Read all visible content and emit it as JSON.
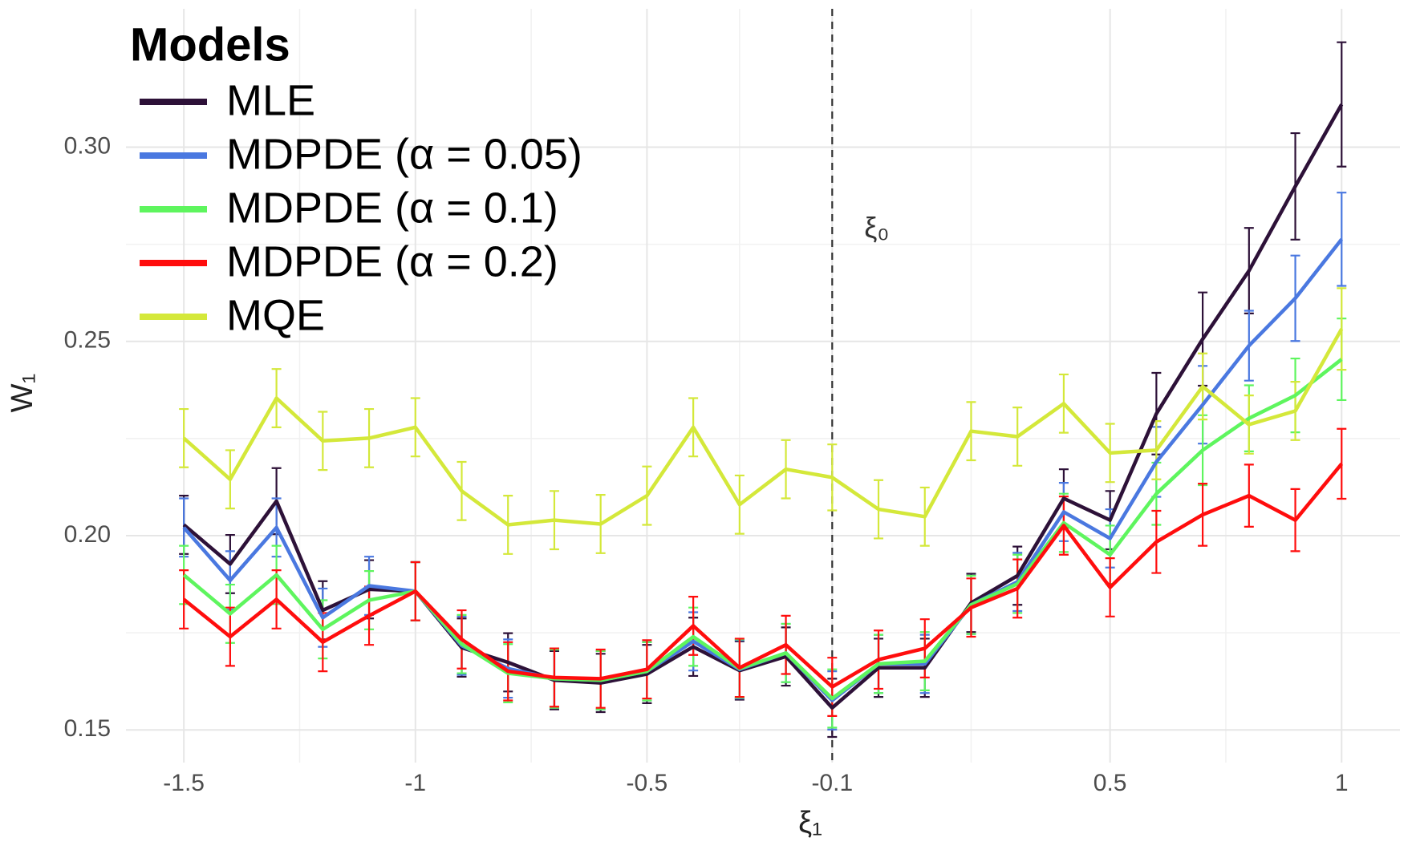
{
  "chart_data": {
    "type": "line",
    "x_label": "ξ₁",
    "y_label": "W₁",
    "legend_title": "Models",
    "legend_position": "top-left",
    "grid": true,
    "x": [
      -1.5,
      -1.4,
      -1.3,
      -1.2,
      -1.1,
      -1.0,
      -0.9,
      -0.8,
      -0.7,
      -0.6,
      -0.5,
      -0.4,
      -0.3,
      -0.2,
      -0.1,
      0.0,
      0.1,
      0.2,
      0.3,
      0.4,
      0.5,
      0.6,
      0.7,
      0.8,
      0.9,
      1.0
    ],
    "xlim": [
      -1.625,
      1.126
    ],
    "xticks": [
      -1.5,
      -1,
      -0.5,
      -0.1,
      0.5,
      1
    ],
    "x_minor_ticks": [
      -1.25,
      -0.75,
      -0.3,
      0.2,
      0.75
    ],
    "ylim": [
      0.1416,
      0.3356
    ],
    "yticks": [
      0.15,
      {
        "value": 0.2,
        "label": "0.20"
      },
      0.25,
      {
        "value": 0.3,
        "label": "0.30"
      }
    ],
    "y_minor_ticks": [
      0.175,
      0.225,
      0.275
    ],
    "reference_line": {
      "x": -0.1,
      "label": "ξ₀",
      "color": "#333333"
    },
    "series": [
      {
        "name": "MLE",
        "color": "#2d1138",
        "values": [
          0.2028,
          0.1927,
          0.2089,
          0.1808,
          0.1862,
          0.1857,
          0.1712,
          0.1674,
          0.1628,
          0.1621,
          0.1644,
          0.1714,
          0.1653,
          0.1689,
          0.1557,
          0.166,
          0.166,
          0.1827,
          0.1897,
          0.2096,
          0.204,
          0.2314,
          0.2506,
          0.2682,
          0.2899,
          0.311
        ],
        "errors": [
          0.0075,
          0.0075,
          0.0085,
          0.0075,
          0.0075,
          0.0075,
          0.0075,
          0.0075,
          0.0075,
          0.0075,
          0.0075,
          0.0075,
          0.0075,
          0.0075,
          0.0075,
          0.0075,
          0.0075,
          0.0075,
          0.0075,
          0.0075,
          0.0075,
          0.0105,
          0.012,
          0.011,
          0.0137,
          0.016
        ]
      },
      {
        "name": "MDPDE (α = 0.05)",
        "color": "#4a78e0",
        "values": [
          0.2021,
          0.1885,
          0.2021,
          0.1789,
          0.1871,
          0.1857,
          0.1717,
          0.1658,
          0.1632,
          0.1628,
          0.1651,
          0.1728,
          0.1656,
          0.1698,
          0.1576,
          0.167,
          0.167,
          0.1822,
          0.1881,
          0.2061,
          0.1993,
          0.219,
          0.2337,
          0.2489,
          0.2611,
          0.2763
        ],
        "errors": [
          0.0075,
          0.0075,
          0.0075,
          0.0075,
          0.0075,
          0.0075,
          0.0075,
          0.0075,
          0.0075,
          0.0075,
          0.0075,
          0.0075,
          0.0075,
          0.0075,
          0.0075,
          0.0075,
          0.0075,
          0.0075,
          0.0075,
          0.0075,
          0.0075,
          0.009,
          0.01,
          0.009,
          0.011,
          0.012
        ]
      },
      {
        "name": "MDPDE (α = 0.1)",
        "color": "#5ef55e",
        "values": [
          0.1899,
          0.1799,
          0.1899,
          0.1759,
          0.1834,
          0.1857,
          0.1721,
          0.1646,
          0.1632,
          0.1628,
          0.1651,
          0.174,
          0.1658,
          0.1698,
          0.1581,
          0.167,
          0.1677,
          0.1822,
          0.1876,
          0.2033,
          0.1951,
          0.2108,
          0.222,
          0.2302,
          0.2361,
          0.2454
        ],
        "errors": [
          0.0075,
          0.0075,
          0.0075,
          0.0075,
          0.0075,
          0.0075,
          0.0075,
          0.0075,
          0.0075,
          0.0075,
          0.0075,
          0.0075,
          0.0075,
          0.0075,
          0.0075,
          0.0075,
          0.0075,
          0.0075,
          0.0075,
          0.0075,
          0.0075,
          0.008,
          0.009,
          0.0085,
          0.0095,
          0.0105
        ]
      },
      {
        "name": "MDPDE (α = 0.2)",
        "color": "#ff0d0d",
        "values": [
          0.1836,
          0.174,
          0.1836,
          0.1726,
          0.1794,
          0.1857,
          0.1733,
          0.1651,
          0.1635,
          0.1632,
          0.1656,
          0.1768,
          0.166,
          0.1719,
          0.1611,
          0.1681,
          0.171,
          0.1815,
          0.1864,
          0.2026,
          0.1867,
          0.1984,
          0.2054,
          0.2103,
          0.204,
          0.2185
        ],
        "errors": [
          0.0075,
          0.0075,
          0.0075,
          0.0075,
          0.0075,
          0.0075,
          0.0075,
          0.0075,
          0.0075,
          0.0075,
          0.0075,
          0.0075,
          0.0075,
          0.0075,
          0.0075,
          0.0075,
          0.0075,
          0.0075,
          0.0075,
          0.0075,
          0.0075,
          0.008,
          0.008,
          0.008,
          0.008,
          0.009
        ]
      },
      {
        "name": "MQE",
        "color": "#d4e83a",
        "values": [
          0.2251,
          0.2145,
          0.2354,
          0.2244,
          0.2251,
          0.2279,
          0.2115,
          0.2028,
          0.204,
          0.203,
          0.2103,
          0.2279,
          0.208,
          0.2171,
          0.215,
          0.2068,
          0.2049,
          0.2269,
          0.2255,
          0.234,
          0.2213,
          0.222,
          0.2384,
          0.2286,
          0.2321,
          0.2532
        ],
        "errors": [
          0.0075,
          0.0075,
          0.0075,
          0.0075,
          0.0075,
          0.0075,
          0.0075,
          0.0075,
          0.0075,
          0.0075,
          0.0075,
          0.0075,
          0.0075,
          0.0075,
          0.0085,
          0.0075,
          0.0075,
          0.0075,
          0.0075,
          0.0075,
          0.0075,
          0.0075,
          0.0085,
          0.0075,
          0.0075,
          0.0105
        ]
      }
    ]
  }
}
